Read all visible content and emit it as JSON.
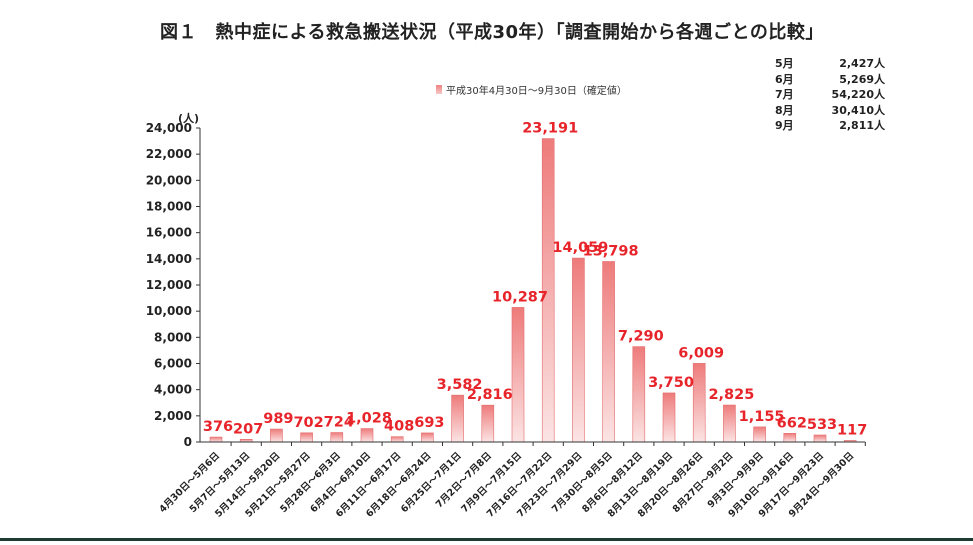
{
  "title": "図１　熱中症による救急搬送状況（平成30年）「調査開始から各週ごとの比較」",
  "monthly_totals": [
    {
      "month": "5月",
      "value": "2,427人"
    },
    {
      "month": "6月",
      "value": "5,269人"
    },
    {
      "month": "7月",
      "value": "54,220人"
    },
    {
      "month": "8月",
      "value": "30,410人"
    },
    {
      "month": "9月",
      "value": "2,811人"
    }
  ],
  "legend_label": "平成30年4月30日～9月30日（確定値）",
  "unit_label": "(人)",
  "colors": {
    "bar_top": "#ee7b7b",
    "bar_bottom": "#fbe4e4",
    "value_label": "#e8242b",
    "axis": "#333333"
  },
  "chart_data": {
    "type": "bar",
    "ylim": [
      0,
      24000
    ],
    "yticks": [
      0,
      2000,
      4000,
      6000,
      8000,
      10000,
      12000,
      14000,
      16000,
      18000,
      20000,
      22000,
      24000
    ],
    "ytick_labels": [
      "0",
      "2,000",
      "4,000",
      "6,000",
      "8,000",
      "10,000",
      "12,000",
      "14,000",
      "16,000",
      "18,000",
      "20,000",
      "22,000",
      "24,000"
    ],
    "categories": [
      "4月30日～5月6日",
      "5月7日～5月13日",
      "5月14日～5月20日",
      "5月21日～5月27日",
      "5月28日～6月3日",
      "6月4日～6月10日",
      "6月11日～6月17日",
      "6月18日～6月24日",
      "6月25日～7月1日",
      "7月2日～7月8日",
      "7月9日～7月15日",
      "7月16日～7月22日",
      "7月23日～7月29日",
      "7月30日～8月5日",
      "8月6日～8月12日",
      "8月13日～8月19日",
      "8月20日～8月26日",
      "8月27日～9月2日",
      "9月3日～9月9日",
      "9月10日～9月16日",
      "9月17日～9月23日",
      "9月24日～9月30日"
    ],
    "values": [
      376,
      207,
      989,
      702,
      724,
      1028,
      408,
      693,
      3582,
      2816,
      10287,
      23191,
      14059,
      13798,
      7290,
      3750,
      6009,
      2825,
      1155,
      662,
      533,
      117
    ],
    "value_labels": [
      "376",
      "207",
      "989",
      "702",
      "724",
      "1,028",
      "408",
      "693",
      "3,582",
      "2,816",
      "10,287",
      "23,191",
      "14,059",
      "13,798",
      "7,290",
      "3,750",
      "6,009",
      "2,825",
      "1,155",
      "662",
      "533",
      "117"
    ],
    "legend_position": "top-center",
    "grid": false
  }
}
